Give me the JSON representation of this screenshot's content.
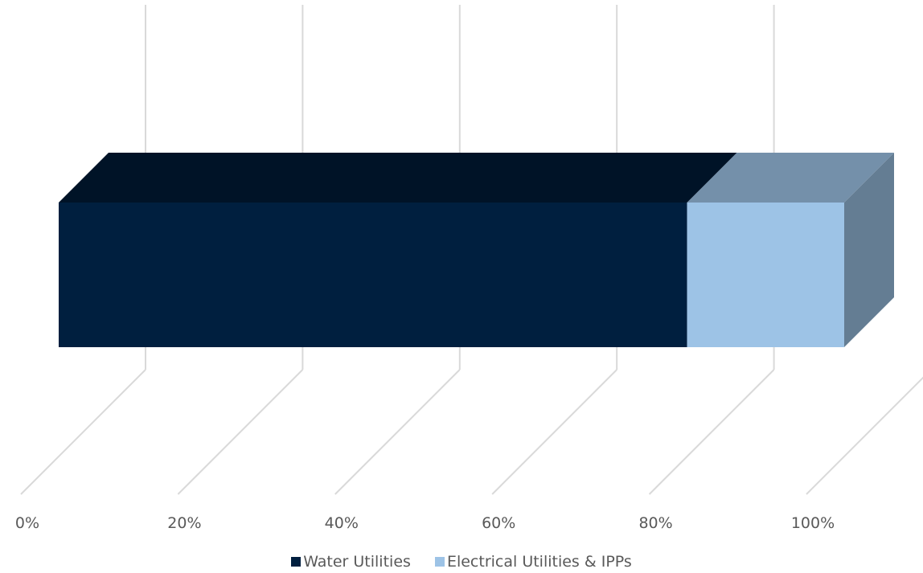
{
  "chart_data": {
    "type": "bar",
    "orientation": "horizontal",
    "stacked": "percent",
    "style": "3d",
    "categories": [
      ""
    ],
    "series": [
      {
        "name": "Water Utilities",
        "values": [
          80
        ],
        "color": "#001f3f"
      },
      {
        "name": "Electrical Utilities & IPPs",
        "values": [
          20
        ],
        "color": "#9dc3e6"
      }
    ],
    "xlim": [
      0,
      100
    ],
    "x_ticks": [
      "0%",
      "20%",
      "40%",
      "60%",
      "80%",
      "100%"
    ],
    "grid": true,
    "legend_position": "bottom"
  }
}
